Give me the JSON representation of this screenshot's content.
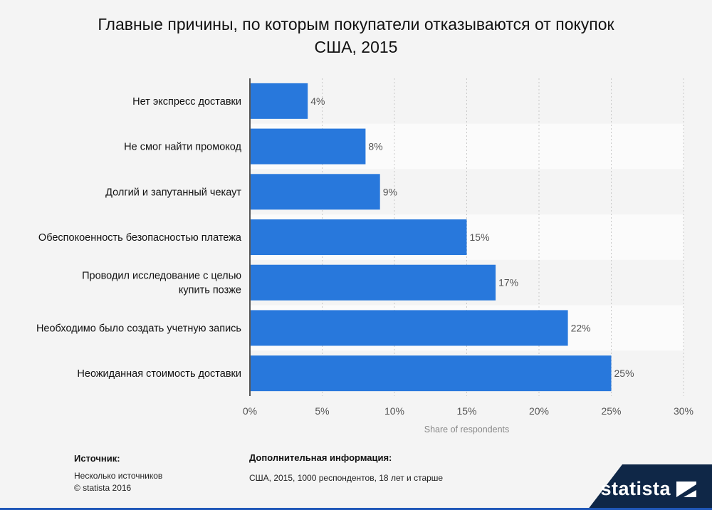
{
  "title_lines": [
    "Главные причины, по которым покупатели отказываются от покупок",
    "США, 2015"
  ],
  "chart_data": {
    "type": "bar",
    "orientation": "horizontal",
    "categories": [
      "Нет экспресс доставки",
      "Не смог найти промокод",
      "Долгий и запутанный чекаут",
      "Обеспокоенность безопасностью платежа",
      "Проводил исследование с целью купить позже",
      "Необходимо было создать учетную запись",
      "Неожиданная стоимость доставки"
    ],
    "category_lines": [
      [
        "Нет экспресс доставки"
      ],
      [
        "Не смог найти промокод"
      ],
      [
        "Долгий и запутанный чекаут"
      ],
      [
        "Обеспокоенность безопасностью платежа"
      ],
      [
        "Проводил исследование с целью",
        "купить позже"
      ],
      [
        "Необходимо было создать учетную запись"
      ],
      [
        "Неожиданная стоимость доставки"
      ]
    ],
    "values": [
      4,
      8,
      9,
      15,
      17,
      22,
      25
    ],
    "value_labels": [
      "4%",
      "8%",
      "9%",
      "15%",
      "17%",
      "22%",
      "25%"
    ],
    "xlim": [
      0,
      30
    ],
    "xticks": [
      0,
      5,
      10,
      15,
      20,
      25,
      30
    ],
    "xtick_labels": [
      "0%",
      "5%",
      "10%",
      "15%",
      "20%",
      "25%",
      "30%"
    ],
    "xlabel": "Share of respondents",
    "bar_color": "#2878dc",
    "grid": true
  },
  "source": {
    "heading": "Источник:",
    "lines": [
      "Несколько источников",
      "© statista 2016"
    ]
  },
  "info": {
    "heading": "Дополнительная информация:",
    "text": "США, 2015, 1000 респондентов, 18 лет и старше"
  },
  "logo": {
    "text": "statista",
    "icon": "statista-logo-icon",
    "background": "#0f2747"
  }
}
